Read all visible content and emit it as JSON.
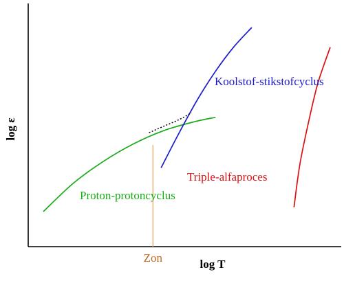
{
  "chart_data": {
    "type": "line",
    "title": "",
    "xlabel": "log T",
    "ylabel": "log ε",
    "grid": false,
    "legend": "none",
    "xticks": [],
    "yticks": [],
    "annotations": [
      {
        "text": "Zon",
        "color": "#c06a1e",
        "marks": "sun-temperature-vertical-line"
      }
    ],
    "series": [
      {
        "name": "Proton-protoncyclus",
        "color": "#1aaa1a",
        "curve": "low-slope-rising",
        "x": [
          0.05,
          0.15,
          0.25,
          0.35,
          0.45,
          0.55,
          0.62
        ],
        "y": [
          0.16,
          0.29,
          0.39,
          0.47,
          0.53,
          0.57,
          0.59
        ]
      },
      {
        "name": "Koolstof-stikstofcyclus",
        "color": "#1a1acc",
        "curve": "steep-rising",
        "x": [
          0.44,
          0.5,
          0.56,
          0.62,
          0.68,
          0.74
        ],
        "y": [
          0.36,
          0.52,
          0.67,
          0.8,
          0.91,
          1.0
        ]
      },
      {
        "name": "Triple-alfaproces",
        "color": "#dd1111",
        "curve": "very-steep-rising",
        "x": [
          0.88,
          0.9,
          0.93,
          0.96,
          1.0
        ],
        "y": [
          0.18,
          0.38,
          0.58,
          0.75,
          0.91
        ]
      }
    ],
    "crossover": {
      "color": "#000000",
      "style": "dotted",
      "x": [
        0.4,
        0.45,
        0.5,
        0.54
      ],
      "y": [
        0.52,
        0.55,
        0.58,
        0.61
      ]
    }
  }
}
